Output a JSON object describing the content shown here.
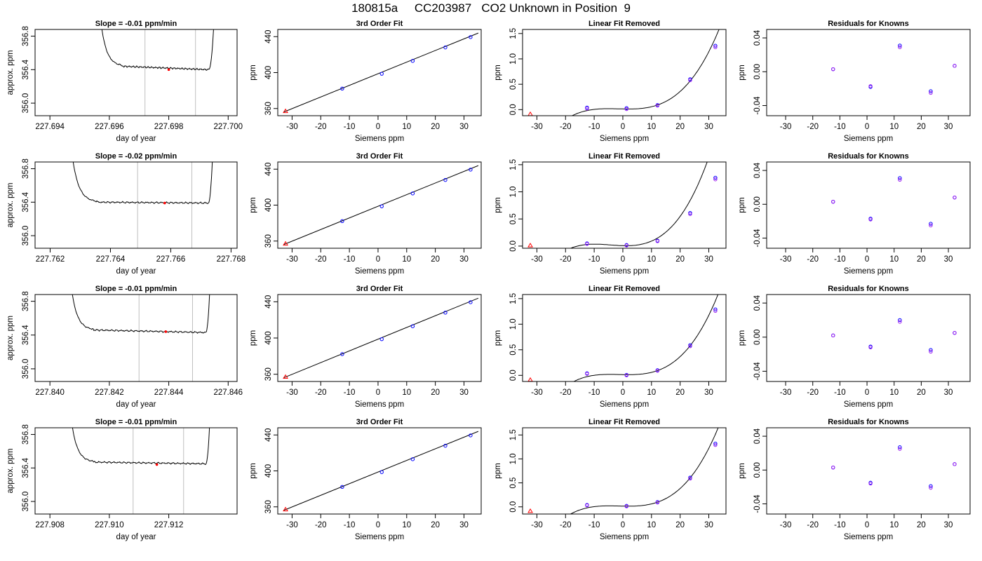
{
  "title": {
    "run": "180815a",
    "tank": "CC203987",
    "description": "CO2 Unknown in Position  9"
  },
  "colors": {
    "trace": "#000000",
    "marker_std": "#0000ff",
    "marker_std2": "#a020f0",
    "marker_unknown": "#ff0000",
    "window_line": "#bebebe"
  },
  "chart_data": [
    {
      "type": "line",
      "panel": "trace",
      "row": 1,
      "title": "Slope =  -0.01  ppm/min",
      "xlabel": "day of year",
      "ylabel": "approx. ppm",
      "xlim": [
        227.6935,
        227.7003
      ],
      "ylim": [
        355.85,
        356.88
      ],
      "xticks": [
        227.694,
        227.696,
        227.698,
        227.7
      ],
      "xtick_labels": [
        "227.694",
        "227.696",
        "227.698",
        "227.700"
      ],
      "yticks": [
        356.0,
        356.4,
        356.8
      ],
      "ytick_labels": [
        "356.0",
        "356.4",
        "356.8"
      ],
      "trace": {
        "start": 227.6955,
        "plateau_start": 227.69645,
        "plateau_end": 227.69935,
        "end": 227.6996,
        "level_start": 356.44,
        "level_end": 356.4
      },
      "window": [
        227.6972,
        227.6989
      ],
      "marker": {
        "x": 227.698,
        "y": 356.4
      }
    },
    {
      "type": "scatter",
      "panel": "fit",
      "row": 1,
      "title": "3rd Order Fit",
      "xlabel": "Siemens ppm",
      "ylabel": "ppm",
      "xlim": [
        -35,
        36
      ],
      "ylim": [
        352,
        448
      ],
      "xticks": [
        -30,
        -20,
        -10,
        0,
        10,
        20,
        30
      ],
      "xtick_labels": [
        "-30",
        "-20",
        "-10",
        "0",
        "10",
        "20",
        "30"
      ],
      "yticks": [
        360,
        400,
        440
      ],
      "ytick_labels": [
        "360",
        "400",
        "440"
      ],
      "x": [
        -12.5,
        1.3,
        12.1,
        23.5,
        32.3
      ],
      "y": [
        382.2,
        398.7,
        413.0,
        428.0,
        439.5
      ],
      "unknown": {
        "x": -32.3,
        "y": 357.0
      },
      "line": [
        [
          -33,
          356
        ],
        [
          35,
          444
        ]
      ]
    },
    {
      "type": "scatter",
      "panel": "resid",
      "row": 1,
      "title": "Linear Fit Removed",
      "xlabel": "Siemens ppm",
      "ylabel": "ppm",
      "xlim": [
        -35,
        36
      ],
      "ylim": [
        -0.12,
        1.58
      ],
      "xticks": [
        -30,
        -20,
        -10,
        0,
        10,
        20,
        30
      ],
      "xtick_labels": [
        "-30",
        "-20",
        "-10",
        "0",
        "10",
        "20",
        "30"
      ],
      "yticks": [
        0.0,
        0.5,
        1.0,
        1.5
      ],
      "ytick_labels": [
        "0.0",
        "0.5",
        "1.0",
        "1.5"
      ],
      "x": [
        -12.5,
        1.3,
        12.1,
        23.5,
        32.3
      ],
      "y": [
        0.04,
        0.03,
        0.09,
        0.6,
        1.26
      ],
      "y2": [
        0.02,
        0.01,
        0.08,
        0.58,
        1.23
      ],
      "unknown": {
        "x": -32.3,
        "y": -0.09
      },
      "curve_coeffs": [
        0.0134,
        -0.00112,
        0.000171,
        3.73e-05
      ]
    },
    {
      "type": "scatter",
      "panel": "known",
      "row": 1,
      "title": "Residuals for Knowns",
      "xlabel": "Siemens ppm",
      "ylabel": "ppm",
      "xlim": [
        -37,
        38
      ],
      "ylim": [
        -0.052,
        0.05
      ],
      "xticks": [
        -30,
        -20,
        -10,
        0,
        10,
        20,
        30
      ],
      "xtick_labels": [
        "-30",
        "-20",
        "-10",
        "0",
        "10",
        "20",
        "30"
      ],
      "yticks": [
        -0.04,
        0.0,
        0.04
      ],
      "ytick_labels": [
        "-0.04",
        "0.00",
        "0.04"
      ],
      "x": [
        -12.5,
        1.3,
        12.1,
        23.5,
        32.3
      ],
      "y": [
        0.003,
        -0.018,
        0.031,
        -0.023,
        0.007
      ],
      "y2": [
        0.003,
        -0.017,
        0.029,
        -0.025,
        0.007
      ]
    },
    {
      "type": "line",
      "panel": "trace",
      "row": 2,
      "title": "Slope =  -0.02  ppm/min",
      "xlabel": "day of year",
      "ylabel": "approx. ppm",
      "xlim": [
        227.7615,
        227.7682
      ],
      "ylim": [
        355.85,
        356.88
      ],
      "xticks": [
        227.762,
        227.764,
        227.766,
        227.768
      ],
      "xtick_labels": [
        "227.762",
        "227.764",
        "227.766",
        "227.768"
      ],
      "yticks": [
        356.0,
        356.4,
        356.8
      ],
      "ytick_labels": [
        "356.0",
        "356.4",
        "356.8"
      ],
      "trace": {
        "start": 227.7625,
        "plateau_start": 227.76355,
        "plateau_end": 227.76725,
        "end": 227.76745,
        "level_start": 356.4,
        "level_end": 356.39
      },
      "window": [
        227.7649,
        227.7667
      ],
      "marker": {
        "x": 227.7658,
        "y": 356.39
      }
    },
    {
      "type": "scatter",
      "panel": "fit",
      "row": 2,
      "title": "3rd Order Fit",
      "xlabel": "Siemens ppm",
      "ylabel": "ppm",
      "xlim": [
        -35,
        36
      ],
      "ylim": [
        352,
        448
      ],
      "xticks": [
        -30,
        -20,
        -10,
        0,
        10,
        20,
        30
      ],
      "xtick_labels": [
        "-30",
        "-20",
        "-10",
        "0",
        "10",
        "20",
        "30"
      ],
      "yticks": [
        360,
        400,
        440
      ],
      "ytick_labels": [
        "360",
        "400",
        "440"
      ],
      "x": [
        -12.5,
        1.3,
        12.1,
        23.5,
        32.3
      ],
      "y": [
        382.2,
        398.7,
        413.0,
        428.0,
        439.5
      ],
      "unknown": {
        "x": -32.3,
        "y": 357.0
      },
      "line": [
        [
          -33,
          356
        ],
        [
          35,
          444
        ]
      ]
    },
    {
      "type": "scatter",
      "panel": "resid",
      "row": 2,
      "title": "Linear Fit Removed",
      "xlabel": "Siemens ppm",
      "ylabel": "ppm",
      "xlim": [
        -35,
        36
      ],
      "ylim": [
        -0.04,
        1.55
      ],
      "xticks": [
        -30,
        -20,
        -10,
        0,
        10,
        20,
        30
      ],
      "xtick_labels": [
        "-30",
        "-20",
        "-10",
        "0",
        "10",
        "20",
        "30"
      ],
      "yticks": [
        0.0,
        0.5,
        1.0,
        1.5
      ],
      "ytick_labels": [
        "0.0",
        "0.5",
        "1.0",
        "1.5"
      ],
      "x": [
        -12.5,
        1.3,
        12.1,
        23.5,
        32.3
      ],
      "y": [
        0.05,
        0.02,
        0.1,
        0.61,
        1.26
      ],
      "y2": [
        0.04,
        0.01,
        0.09,
        0.59,
        1.23
      ],
      "unknown": {
        "x": -32.3,
        "y": 0.01
      },
      "curve_coeffs": [
        0.0076,
        -0.0015,
        0.00056,
        4.32e-05
      ]
    },
    {
      "type": "scatter",
      "panel": "known",
      "row": 2,
      "title": "Residuals for Knowns",
      "xlabel": "Siemens ppm",
      "ylabel": "ppm",
      "xlim": [
        -37,
        38
      ],
      "ylim": [
        -0.052,
        0.05
      ],
      "xticks": [
        -30,
        -20,
        -10,
        0,
        10,
        20,
        30
      ],
      "xtick_labels": [
        "-30",
        "-20",
        "-10",
        "0",
        "10",
        "20",
        "30"
      ],
      "yticks": [
        -0.04,
        0.0,
        0.04
      ],
      "ytick_labels": [
        "-0.04",
        "0.00",
        "0.04"
      ],
      "x": [
        -12.5,
        1.3,
        12.1,
        23.5,
        32.3
      ],
      "y": [
        0.003,
        -0.017,
        0.031,
        -0.023,
        0.008
      ],
      "y2": [
        0.003,
        -0.018,
        0.029,
        -0.025,
        0.008
      ]
    },
    {
      "type": "line",
      "panel": "trace",
      "row": 3,
      "title": "Slope =  -0.01  ppm/min",
      "xlabel": "day of year",
      "ylabel": "approx. ppm",
      "xlim": [
        227.8395,
        227.8463
      ],
      "ylim": [
        355.85,
        356.88
      ],
      "xticks": [
        227.84,
        227.842,
        227.844,
        227.846
      ],
      "xtick_labels": [
        "227.840",
        "227.842",
        "227.844",
        "227.846"
      ],
      "yticks": [
        356.0,
        356.4,
        356.8
      ],
      "ytick_labels": [
        "356.0",
        "356.4",
        "356.8"
      ],
      "trace": {
        "start": 227.8405,
        "plateau_start": 227.84145,
        "plateau_end": 227.84525,
        "end": 227.84545,
        "level_start": 356.46,
        "level_end": 356.43
      },
      "window": [
        227.843,
        227.8448
      ],
      "marker": {
        "x": 227.8439,
        "y": 356.44
      }
    },
    {
      "type": "scatter",
      "panel": "fit",
      "row": 3,
      "title": "3rd Order Fit",
      "xlabel": "Siemens ppm",
      "ylabel": "ppm",
      "xlim": [
        -35,
        36
      ],
      "ylim": [
        352,
        448
      ],
      "xticks": [
        -30,
        -20,
        -10,
        0,
        10,
        20,
        30
      ],
      "xtick_labels": [
        "-30",
        "-20",
        "-10",
        "0",
        "10",
        "20",
        "30"
      ],
      "yticks": [
        360,
        400,
        440
      ],
      "ytick_labels": [
        "360",
        "400",
        "440"
      ],
      "x": [
        -12.5,
        1.3,
        12.1,
        23.5,
        32.3
      ],
      "y": [
        382.2,
        398.7,
        413.0,
        428.0,
        439.5
      ],
      "unknown": {
        "x": -32.3,
        "y": 357.0
      },
      "line": [
        [
          -33,
          356
        ],
        [
          35,
          444
        ]
      ]
    },
    {
      "type": "scatter",
      "panel": "resid",
      "row": 3,
      "title": "Linear Fit Removed",
      "xlabel": "Siemens ppm",
      "ylabel": "ppm",
      "xlim": [
        -35,
        36
      ],
      "ylim": [
        -0.12,
        1.58
      ],
      "xticks": [
        -30,
        -20,
        -10,
        0,
        10,
        20,
        30
      ],
      "xtick_labels": [
        "-30",
        "-20",
        "-10",
        "0",
        "10",
        "20",
        "30"
      ],
      "yticks": [
        0.0,
        0.5,
        1.0,
        1.5
      ],
      "ytick_labels": [
        "0.0",
        "0.5",
        "1.0",
        "1.5"
      ],
      "x": [
        -12.5,
        1.3,
        12.1,
        23.5,
        32.3
      ],
      "y": [
        0.04,
        0.01,
        0.1,
        0.59,
        1.29
      ],
      "y2": [
        0.03,
        0.0,
        0.09,
        0.57,
        1.26
      ],
      "unknown": {
        "x": -32.3,
        "y": -0.09
      },
      "curve_coeffs": [
        0.0146,
        -0.00105,
        0.000148,
        3.92e-05
      ]
    },
    {
      "type": "scatter",
      "panel": "known",
      "row": 3,
      "title": "Residuals for Knowns",
      "xlabel": "Siemens ppm",
      "ylabel": "ppm",
      "xlim": [
        -37,
        38
      ],
      "ylim": [
        -0.052,
        0.05
      ],
      "xticks": [
        -30,
        -20,
        -10,
        0,
        10,
        20,
        30
      ],
      "xtick_labels": [
        "-30",
        "-20",
        "-10",
        "0",
        "10",
        "20",
        "30"
      ],
      "yticks": [
        -0.04,
        0.0,
        0.04
      ],
      "ytick_labels": [
        "-0.04",
        "0.00",
        "0.04"
      ],
      "x": [
        -12.5,
        1.3,
        12.1,
        23.5,
        32.3
      ],
      "y": [
        0.002,
        -0.011,
        0.02,
        -0.015,
        0.005
      ],
      "y2": [
        0.002,
        -0.012,
        0.018,
        -0.017,
        0.005
      ]
    },
    {
      "type": "line",
      "panel": "trace",
      "row": 4,
      "title": "Slope =  -0.01  ppm/min",
      "xlabel": "day of year",
      "ylabel": "approx. ppm",
      "xlim": [
        227.9075,
        227.9143
      ],
      "ylim": [
        355.85,
        356.88
      ],
      "xticks": [
        227.908,
        227.91,
        227.912
      ],
      "xtick_labels": [
        "227.908",
        "227.910",
        "227.912"
      ],
      "yticks": [
        356.0,
        356.4,
        356.8
      ],
      "ytick_labels": [
        "356.0",
        "356.4",
        "356.8"
      ],
      "trace": {
        "start": 227.9085,
        "plateau_start": 227.90945,
        "plateau_end": 227.91325,
        "end": 227.91345,
        "level_start": 356.47,
        "level_end": 356.45
      },
      "window": [
        227.9108,
        227.9125
      ],
      "marker": {
        "x": 227.9116,
        "y": 356.44
      }
    },
    {
      "type": "scatter",
      "panel": "fit",
      "row": 4,
      "title": "3rd Order Fit",
      "xlabel": "Siemens ppm",
      "ylabel": "ppm",
      "xlim": [
        -35,
        36
      ],
      "ylim": [
        352,
        448
      ],
      "xticks": [
        -30,
        -20,
        -10,
        0,
        10,
        20,
        30
      ],
      "xtick_labels": [
        "-30",
        "-20",
        "-10",
        "0",
        "10",
        "20",
        "30"
      ],
      "yticks": [
        360,
        400,
        440
      ],
      "ytick_labels": [
        "360",
        "400",
        "440"
      ],
      "x": [
        -12.5,
        1.3,
        12.1,
        23.5,
        32.3
      ],
      "y": [
        382.2,
        398.7,
        413.0,
        428.0,
        439.5
      ],
      "unknown": {
        "x": -32.3,
        "y": 357.0
      },
      "line": [
        [
          -33,
          356
        ],
        [
          35,
          444
        ]
      ]
    },
    {
      "type": "scatter",
      "panel": "resid",
      "row": 4,
      "title": "Linear Fit Removed",
      "xlabel": "Siemens ppm",
      "ylabel": "ppm",
      "xlim": [
        -35,
        36
      ],
      "ylim": [
        -0.15,
        1.65
      ],
      "xticks": [
        -30,
        -20,
        -10,
        0,
        10,
        20,
        30
      ],
      "xtick_labels": [
        "-30",
        "-20",
        "-10",
        "0",
        "10",
        "20",
        "30"
      ],
      "yticks": [
        0.0,
        0.5,
        1.0,
        1.5
      ],
      "ytick_labels": [
        "0.0",
        "0.5",
        "1.0",
        "1.5"
      ],
      "x": [
        -12.5,
        1.3,
        12.1,
        23.5,
        32.3
      ],
      "y": [
        0.04,
        0.02,
        0.1,
        0.61,
        1.32
      ],
      "y2": [
        0.03,
        0.01,
        0.09,
        0.59,
        1.29
      ],
      "unknown": {
        "x": -32.3,
        "y": -0.09
      },
      "curve_coeffs": [
        0.015,
        -0.00114,
        0.000173,
        4.02e-05
      ]
    },
    {
      "type": "scatter",
      "panel": "known",
      "row": 4,
      "title": "Residuals for Knowns",
      "xlabel": "Siemens ppm",
      "ylabel": "ppm",
      "xlim": [
        -37,
        38
      ],
      "ylim": [
        -0.052,
        0.05
      ],
      "xticks": [
        -30,
        -20,
        -10,
        0,
        10,
        20,
        30
      ],
      "xtick_labels": [
        "-30",
        "-20",
        "-10",
        "0",
        "10",
        "20",
        "30"
      ],
      "yticks": [
        -0.04,
        0.0,
        0.04
      ],
      "ytick_labels": [
        "-0.04",
        "0.00",
        "0.04"
      ],
      "x": [
        -12.5,
        1.3,
        12.1,
        23.5,
        32.3
      ],
      "y": [
        0.003,
        -0.015,
        0.027,
        -0.019,
        0.007
      ],
      "y2": [
        0.003,
        -0.016,
        0.025,
        -0.021,
        0.007
      ]
    }
  ]
}
